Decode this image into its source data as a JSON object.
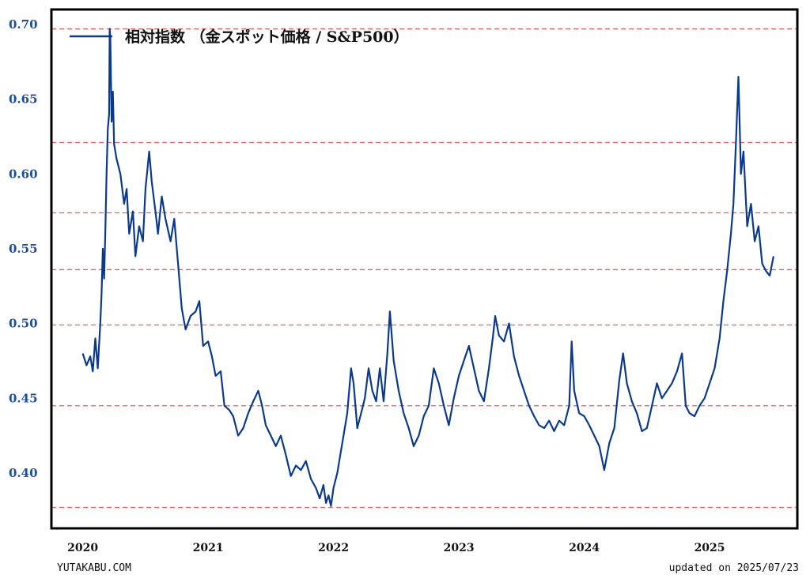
{
  "chart_data": {
    "type": "line",
    "title": "",
    "xlabel": "",
    "ylabel": "",
    "series": [
      {
        "name": "相対指数 （金スポット価格 / S&P500）",
        "color": "#0b3a8c",
        "points": [
          [
            2020.0,
            0.48
          ],
          [
            2020.03,
            0.472
          ],
          [
            2020.06,
            0.478
          ],
          [
            2020.08,
            0.468
          ],
          [
            2020.1,
            0.49
          ],
          [
            2020.12,
            0.47
          ],
          [
            2020.14,
            0.5
          ],
          [
            2020.15,
            0.52
          ],
          [
            2020.16,
            0.55
          ],
          [
            2020.17,
            0.53
          ],
          [
            2020.18,
            0.56
          ],
          [
            2020.19,
            0.6
          ],
          [
            2020.2,
            0.63
          ],
          [
            2020.21,
            0.64
          ],
          [
            2020.215,
            0.697
          ],
          [
            2020.22,
            0.69
          ],
          [
            2020.23,
            0.635
          ],
          [
            2020.24,
            0.655
          ],
          [
            2020.25,
            0.62
          ],
          [
            2020.27,
            0.61
          ],
          [
            2020.3,
            0.6
          ],
          [
            2020.33,
            0.58
          ],
          [
            2020.35,
            0.59
          ],
          [
            2020.37,
            0.56
          ],
          [
            2020.4,
            0.575
          ],
          [
            2020.42,
            0.545
          ],
          [
            2020.45,
            0.565
          ],
          [
            2020.48,
            0.555
          ],
          [
            2020.5,
            0.59
          ],
          [
            2020.53,
            0.615
          ],
          [
            2020.55,
            0.595
          ],
          [
            2020.58,
            0.575
          ],
          [
            2020.6,
            0.56
          ],
          [
            2020.63,
            0.585
          ],
          [
            2020.66,
            0.57
          ],
          [
            2020.7,
            0.555
          ],
          [
            2020.73,
            0.57
          ],
          [
            2020.76,
            0.54
          ],
          [
            2020.79,
            0.51
          ],
          [
            2020.82,
            0.496
          ],
          [
            2020.86,
            0.505
          ],
          [
            2020.9,
            0.508
          ],
          [
            2020.93,
            0.515
          ],
          [
            2020.96,
            0.485
          ],
          [
            2021.0,
            0.488
          ],
          [
            2021.03,
            0.478
          ],
          [
            2021.06,
            0.465
          ],
          [
            2021.1,
            0.468
          ],
          [
            2021.13,
            0.445
          ],
          [
            2021.17,
            0.442
          ],
          [
            2021.2,
            0.438
          ],
          [
            2021.24,
            0.425
          ],
          [
            2021.28,
            0.43
          ],
          [
            2021.32,
            0.44
          ],
          [
            2021.36,
            0.448
          ],
          [
            2021.4,
            0.455
          ],
          [
            2021.43,
            0.445
          ],
          [
            2021.46,
            0.432
          ],
          [
            2021.5,
            0.425
          ],
          [
            2021.54,
            0.418
          ],
          [
            2021.58,
            0.425
          ],
          [
            2021.62,
            0.412
          ],
          [
            2021.66,
            0.398
          ],
          [
            2021.7,
            0.405
          ],
          [
            2021.74,
            0.402
          ],
          [
            2021.78,
            0.408
          ],
          [
            2021.82,
            0.396
          ],
          [
            2021.86,
            0.39
          ],
          [
            2021.89,
            0.383
          ],
          [
            2021.92,
            0.392
          ],
          [
            2021.94,
            0.38
          ],
          [
            2021.96,
            0.385
          ],
          [
            2021.98,
            0.378
          ],
          [
            2022.0,
            0.39
          ],
          [
            2022.03,
            0.4
          ],
          [
            2022.06,
            0.415
          ],
          [
            2022.08,
            0.425
          ],
          [
            2022.11,
            0.44
          ],
          [
            2022.14,
            0.47
          ],
          [
            2022.16,
            0.46
          ],
          [
            2022.19,
            0.43
          ],
          [
            2022.22,
            0.44
          ],
          [
            2022.25,
            0.45
          ],
          [
            2022.28,
            0.47
          ],
          [
            2022.31,
            0.455
          ],
          [
            2022.34,
            0.448
          ],
          [
            2022.37,
            0.47
          ],
          [
            2022.4,
            0.448
          ],
          [
            2022.43,
            0.48
          ],
          [
            2022.45,
            0.508
          ],
          [
            2022.48,
            0.475
          ],
          [
            2022.52,
            0.455
          ],
          [
            2022.56,
            0.44
          ],
          [
            2022.6,
            0.43
          ],
          [
            2022.64,
            0.418
          ],
          [
            2022.68,
            0.425
          ],
          [
            2022.72,
            0.438
          ],
          [
            2022.76,
            0.445
          ],
          [
            2022.8,
            0.47
          ],
          [
            2022.84,
            0.46
          ],
          [
            2022.88,
            0.445
          ],
          [
            2022.92,
            0.432
          ],
          [
            2022.96,
            0.45
          ],
          [
            2023.0,
            0.465
          ],
          [
            2023.04,
            0.475
          ],
          [
            2023.08,
            0.485
          ],
          [
            2023.12,
            0.47
          ],
          [
            2023.16,
            0.455
          ],
          [
            2023.2,
            0.448
          ],
          [
            2023.24,
            0.47
          ],
          [
            2023.27,
            0.49
          ],
          [
            2023.29,
            0.505
          ],
          [
            2023.32,
            0.492
          ],
          [
            2023.36,
            0.488
          ],
          [
            2023.4,
            0.5
          ],
          [
            2023.44,
            0.478
          ],
          [
            2023.48,
            0.465
          ],
          [
            2023.52,
            0.455
          ],
          [
            2023.56,
            0.445
          ],
          [
            2023.6,
            0.438
          ],
          [
            2023.64,
            0.432
          ],
          [
            2023.68,
            0.43
          ],
          [
            2023.72,
            0.435
          ],
          [
            2023.76,
            0.428
          ],
          [
            2023.8,
            0.435
          ],
          [
            2023.84,
            0.432
          ],
          [
            2023.88,
            0.445
          ],
          [
            2023.9,
            0.488
          ],
          [
            2023.92,
            0.455
          ],
          [
            2023.96,
            0.44
          ],
          [
            2024.0,
            0.438
          ],
          [
            2024.04,
            0.432
          ],
          [
            2024.08,
            0.425
          ],
          [
            2024.12,
            0.418
          ],
          [
            2024.16,
            0.402
          ],
          [
            2024.2,
            0.42
          ],
          [
            2024.24,
            0.43
          ],
          [
            2024.28,
            0.462
          ],
          [
            2024.31,
            0.48
          ],
          [
            2024.34,
            0.46
          ],
          [
            2024.38,
            0.448
          ],
          [
            2024.42,
            0.44
          ],
          [
            2024.46,
            0.428
          ],
          [
            2024.5,
            0.43
          ],
          [
            2024.54,
            0.445
          ],
          [
            2024.58,
            0.46
          ],
          [
            2024.62,
            0.45
          ],
          [
            2024.66,
            0.455
          ],
          [
            2024.7,
            0.46
          ],
          [
            2024.74,
            0.468
          ],
          [
            2024.78,
            0.48
          ],
          [
            2024.81,
            0.445
          ],
          [
            2024.84,
            0.44
          ],
          [
            2024.88,
            0.438
          ],
          [
            2024.92,
            0.445
          ],
          [
            2024.96,
            0.45
          ],
          [
            2025.0,
            0.46
          ],
          [
            2025.04,
            0.47
          ],
          [
            2025.08,
            0.49
          ],
          [
            2025.11,
            0.515
          ],
          [
            2025.14,
            0.535
          ],
          [
            2025.17,
            0.56
          ],
          [
            2025.19,
            0.58
          ],
          [
            2025.21,
            0.62
          ],
          [
            2025.23,
            0.665
          ],
          [
            2025.25,
            0.6
          ],
          [
            2025.27,
            0.615
          ],
          [
            2025.3,
            0.565
          ],
          [
            2025.33,
            0.58
          ],
          [
            2025.36,
            0.555
          ],
          [
            2025.39,
            0.565
          ],
          [
            2025.42,
            0.54
          ],
          [
            2025.45,
            0.535
          ],
          [
            2025.48,
            0.532
          ],
          [
            2025.51,
            0.545
          ]
        ]
      }
    ],
    "x_ticks": [
      "2020",
      "2021",
      "2022",
      "2023",
      "2024",
      "2025"
    ],
    "x_tick_values": [
      2020,
      2021,
      2022,
      2023,
      2024,
      2025
    ],
    "y_ticks": [
      "0.40",
      "0.45",
      "0.50",
      "0.55",
      "0.60",
      "0.65",
      "0.70"
    ],
    "y_tick_values": [
      0.4,
      0.45,
      0.5,
      0.55,
      0.6,
      0.65,
      0.7
    ],
    "xlim": [
      2019.75,
      2025.7
    ],
    "ylim": [
      0.363,
      0.71
    ],
    "reference_lines": [
      0.377,
      0.445,
      0.499,
      0.536,
      0.574,
      0.621,
      0.697
    ],
    "reference_line_color": "#e06060",
    "grid": false,
    "legend_position": "top-left"
  },
  "footer": {
    "site": "YUTAKABU.COM",
    "updated": "updated on 2025/07/23"
  }
}
